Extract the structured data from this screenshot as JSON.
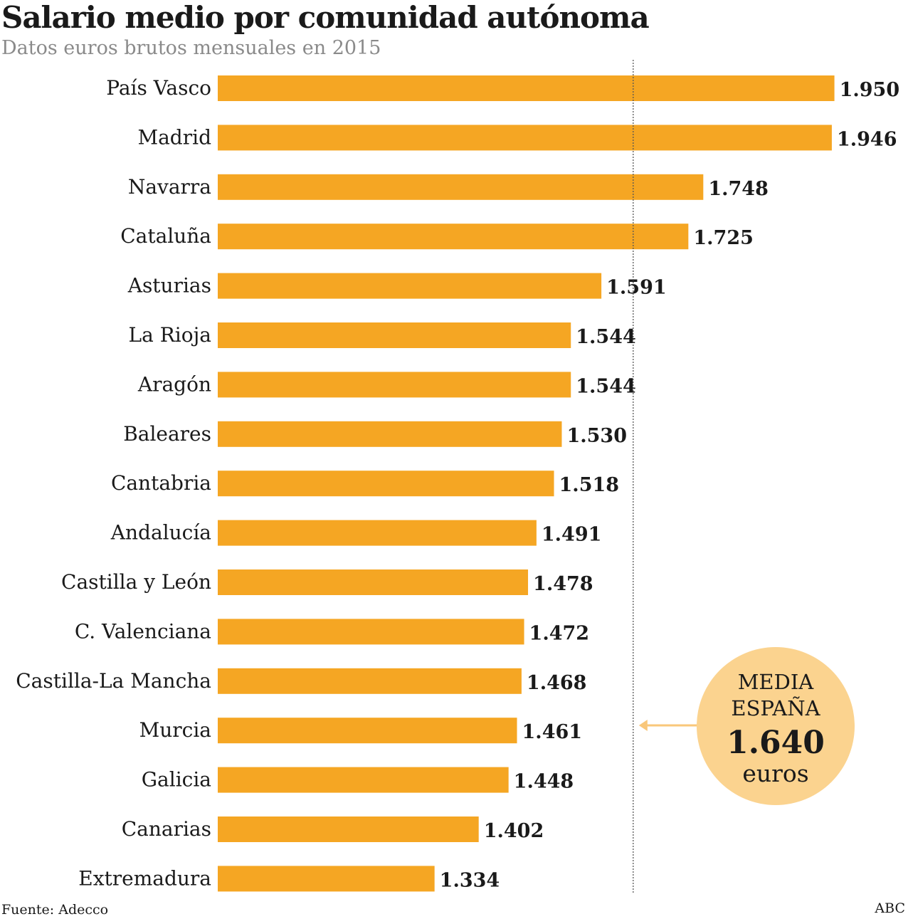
{
  "chart_data": {
    "type": "bar",
    "orientation": "horizontal",
    "title": "Salario medio por comunidad autónoma",
    "subtitle": "Datos euros brutos mensuales en 2015",
    "categories": [
      "País Vasco",
      "Madrid",
      "Navarra",
      "Cataluña",
      "Asturias",
      "La Rioja",
      "Aragón",
      "Baleares",
      "Cantabria",
      "Andalucía",
      "Castilla y León",
      "C. Valenciana",
      "Castilla-La Mancha",
      "Murcia",
      "Galicia",
      "Canarias",
      "Extremadura"
    ],
    "values": [
      1950,
      1946,
      1748,
      1725,
      1591,
      1544,
      1544,
      1530,
      1518,
      1491,
      1478,
      1472,
      1468,
      1461,
      1448,
      1402,
      1334
    ],
    "value_labels": [
      "1.950",
      "1.946",
      "1.748",
      "1.725",
      "1.591",
      "1.544",
      "1.544",
      "1.530",
      "1.518",
      "1.491",
      "1.478",
      "1.472",
      "1.468",
      "1.461",
      "1.448",
      "1.402",
      "1.334"
    ],
    "reference_line": {
      "value": 1640,
      "label_line1": "MEDIA",
      "label_line2": "ESPAÑA",
      "value_label": "1.640",
      "unit": "euros"
    },
    "colors": {
      "bar": "#f5a623",
      "badge": "#fbd38f",
      "arrow": "#f9c77a",
      "reference_line": "#555555"
    },
    "grid": false,
    "legend": "none",
    "source": "Fuente: Adecco",
    "credit": "ABC"
  }
}
